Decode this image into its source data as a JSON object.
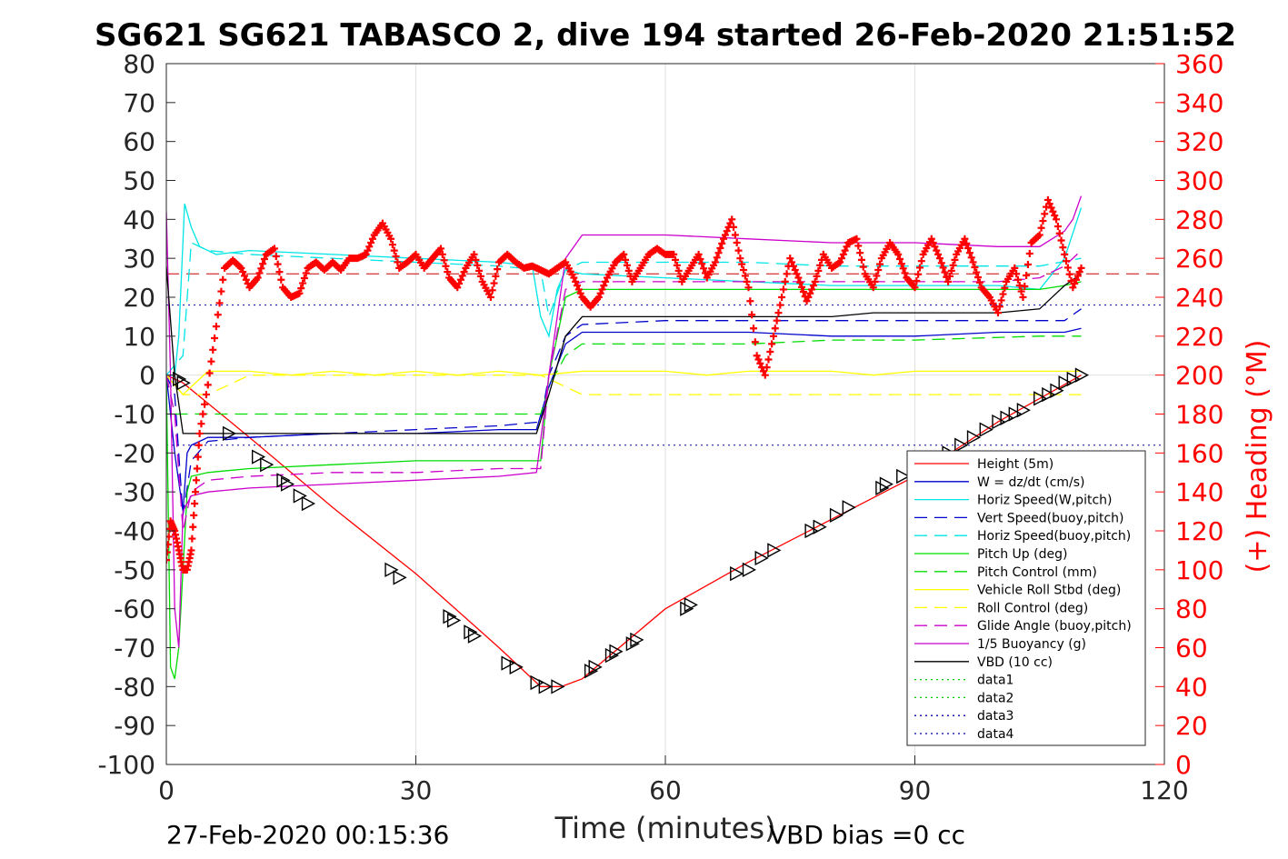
{
  "chart_data": {
    "type": "line",
    "title": "SG621 SG621 TABASCO 2, dive 194 started 26-Feb-2020 21:51:52",
    "xlabel": "Time (minutes)",
    "ylabel_right": "(+) Heading (°M)",
    "footer_left": "27-Feb-2020 00:15:36",
    "footer_right": "VBD bias =0 cc",
    "xlim": [
      0,
      120
    ],
    "ylim": [
      -100,
      80
    ],
    "ylim_right": [
      0,
      360
    ],
    "xticks": [
      "0",
      "30",
      "60",
      "90",
      "120"
    ],
    "yticks": [
      "80",
      "70",
      "60",
      "50",
      "40",
      "30",
      "20",
      "10",
      "0",
      "-10",
      "-20",
      "-30",
      "-40",
      "-50",
      "-60",
      "-70",
      "-80",
      "-90",
      "-100"
    ],
    "yticks_right": [
      "360",
      "340",
      "320",
      "300",
      "280",
      "260",
      "240",
      "220",
      "200",
      "180",
      "160",
      "140",
      "120",
      "100",
      "80",
      "60",
      "40",
      "20",
      "0"
    ],
    "grid": true,
    "legend_position": "lower-right",
    "series": [
      {
        "name": "Height (5m)",
        "color": "#ff0000",
        "style": "solid",
        "x": [
          0,
          2,
          10,
          20,
          30,
          40,
          45,
          47.5,
          50,
          60,
          70,
          80,
          90,
          100,
          110
        ],
        "y": [
          0,
          -2,
          -16,
          -34,
          -51,
          -70,
          -80,
          -80,
          -78,
          -60,
          -48,
          -37,
          -26,
          -12,
          0
        ]
      },
      {
        "name": "W = dz/dt (cm/s)",
        "color": "#0000cc",
        "style": "solid",
        "x": [
          0,
          1,
          2,
          2.5,
          3,
          5,
          10,
          20,
          30,
          40,
          44.5,
          46,
          48,
          50,
          60,
          70,
          80,
          90,
          100,
          105,
          108,
          110
        ],
        "y": [
          0,
          -20,
          -35,
          -20,
          -18,
          -16,
          -16,
          -15,
          -15,
          -14,
          -14,
          -3,
          8,
          11,
          11,
          11,
          10,
          10,
          11,
          11,
          11,
          12
        ]
      },
      {
        "name": "Horiz Speed(W,pitch)",
        "color": "#00e5e5",
        "style": "solid",
        "x": [
          0,
          1,
          1.5,
          2.2,
          3,
          4,
          6,
          10,
          20,
          30,
          40,
          44,
          45,
          46,
          47,
          48,
          50,
          60,
          70,
          80,
          90,
          100,
          105,
          108,
          110
        ],
        "y": [
          0,
          0,
          10,
          44,
          38,
          33,
          31,
          32,
          31,
          30,
          29,
          28,
          15,
          10,
          22,
          27,
          26,
          25,
          24,
          23,
          23,
          23,
          22,
          30,
          43
        ]
      },
      {
        "name": "Vert Speed(buoy,pitch)",
        "color": "#0000cc",
        "style": "dashed",
        "x": [
          0,
          1,
          2,
          3,
          5,
          10,
          20,
          30,
          40,
          45,
          46,
          48,
          50,
          60,
          70,
          80,
          90,
          100,
          105,
          108,
          110
        ],
        "y": [
          0,
          -5,
          -36,
          -22,
          -17,
          -16,
          -15,
          -14,
          -13,
          -12,
          0,
          10,
          13,
          14,
          14,
          14,
          14,
          14,
          14,
          14,
          17
        ]
      },
      {
        "name": "Horiz Speed(buoy,pitch)",
        "color": "#00e5e5",
        "style": "dashed",
        "x": [
          0,
          2,
          3,
          5,
          10,
          20,
          30,
          40,
          45,
          46,
          48,
          50,
          60,
          70,
          80,
          90,
          100,
          105,
          110
        ],
        "y": [
          0,
          5,
          34,
          32,
          31,
          30,
          29,
          28,
          27,
          15,
          27,
          29,
          29,
          29,
          28,
          28,
          28,
          28,
          30
        ]
      },
      {
        "name": "Pitch Up (deg)",
        "color": "#00dd00",
        "style": "solid",
        "x": [
          0,
          0.5,
          1,
          1.5,
          2,
          2.5,
          3,
          5,
          10,
          20,
          30,
          40,
          45,
          46,
          48,
          50,
          60,
          70,
          80,
          90,
          100,
          105,
          108,
          110
        ],
        "y": [
          0,
          -75,
          -78,
          -70,
          -50,
          -30,
          -26,
          -25,
          -24,
          -23,
          -22,
          -22,
          -22,
          0,
          20,
          22,
          22,
          22,
          22,
          22,
          22,
          22,
          23,
          24
        ]
      },
      {
        "name": "Pitch Control (mm)",
        "color": "#00dd00",
        "style": "dashed",
        "x": [
          0,
          1,
          2,
          45,
          46,
          48,
          50,
          70,
          80,
          90,
          105,
          110
        ],
        "y": [
          0,
          -10,
          -10,
          -10,
          -3,
          5,
          8,
          8,
          9,
          9,
          10,
          10
        ]
      },
      {
        "name": "Vehicle Roll Stbd (deg)",
        "color": "#ffff00",
        "style": "solid",
        "x": [
          0,
          2,
          5,
          10,
          15,
          20,
          25,
          30,
          35,
          40,
          45,
          50,
          55,
          60,
          65,
          70,
          75,
          80,
          85,
          90,
          95,
          100,
          105,
          110
        ],
        "y": [
          0,
          -5,
          1,
          1,
          0,
          1,
          0,
          1,
          0,
          1,
          0,
          1,
          1,
          1,
          0,
          1,
          1,
          1,
          0,
          1,
          1,
          1,
          1,
          1
        ]
      },
      {
        "name": "Roll Control (deg)",
        "color": "#ffff00",
        "style": "dashed",
        "x": [
          0,
          2,
          5,
          10,
          20,
          30,
          40,
          45,
          50,
          60,
          70,
          80,
          90,
          100,
          110
        ],
        "y": [
          0,
          -5,
          -5,
          0,
          0,
          0,
          0,
          0,
          -5,
          -5,
          -5,
          -5,
          -5,
          -5,
          -5
        ]
      },
      {
        "name": "Glide Angle (buoy,pitch)",
        "color": "#cc00cc",
        "style": "dashed",
        "x": [
          0,
          1,
          2,
          3,
          5,
          10,
          20,
          30,
          40,
          45,
          46,
          48,
          50,
          60,
          70,
          80,
          90,
          100,
          105,
          108,
          110
        ],
        "y": [
          0,
          -10,
          -40,
          -30,
          -27,
          -26,
          -25,
          -25,
          -24,
          -24,
          0,
          22,
          24,
          24,
          24,
          24,
          24,
          24,
          25,
          28,
          32
        ]
      },
      {
        "name": "1/5 Buoyancy (g)",
        "color": "#cc00cc",
        "style": "solid",
        "x": [
          0,
          0.5,
          1,
          1.5,
          2,
          3,
          5,
          10,
          20,
          30,
          40,
          44.5,
          46,
          48,
          50,
          60,
          70,
          80,
          90,
          100,
          105,
          108,
          109,
          110
        ],
        "y": [
          42,
          0,
          -60,
          -70,
          -35,
          -31,
          -30,
          -29,
          -28,
          -27,
          -26,
          -25,
          0,
          30,
          36,
          36,
          35,
          34,
          34,
          33,
          33,
          37,
          40,
          46
        ]
      },
      {
        "name": "VBD (10 cc)",
        "color": "#000000",
        "style": "solid",
        "x": [
          0,
          1,
          2,
          44.5,
          46,
          48,
          50,
          60,
          70,
          80,
          85,
          90,
          100,
          105,
          108,
          110
        ],
        "y": [
          28,
          0,
          -15,
          -15,
          -5,
          10,
          15,
          15,
          15,
          15,
          16,
          16,
          16,
          17,
          23,
          26
        ]
      },
      {
        "name": "data1",
        "color": "#00cc00",
        "style": "dotted",
        "x": [],
        "y": []
      },
      {
        "name": "data2",
        "color": "#00cc00",
        "style": "dotted",
        "x": [],
        "y": []
      },
      {
        "name": "data3",
        "color": "#0000aa",
        "style": "dotted",
        "x": [],
        "y": []
      },
      {
        "name": "data4",
        "color": "#0000aa",
        "style": "dotted",
        "x": [],
        "y": []
      }
    ],
    "reference_lines": [
      {
        "y": 26,
        "color": "#cc0000",
        "style": "dashed"
      },
      {
        "y": 18,
        "color": "#0000aa",
        "style": "dotted"
      },
      {
        "y": -18,
        "color": "#0000aa",
        "style": "dotted"
      }
    ],
    "heading_series": {
      "color": "#ff0000",
      "marker": "+",
      "axis": "right",
      "x": [
        0,
        0.5,
        1,
        1.5,
        2,
        2.5,
        3,
        3.5,
        4,
        5,
        6,
        7,
        8,
        9,
        10,
        11,
        12,
        13,
        14,
        15,
        16,
        17,
        18,
        19,
        20,
        21,
        22,
        23,
        24,
        25,
        26,
        27,
        28,
        29,
        30,
        31,
        32,
        33,
        34,
        35,
        36,
        37,
        38,
        39,
        40,
        41,
        42,
        43,
        44,
        45,
        46,
        47,
        48,
        49,
        50,
        51,
        52,
        53,
        54,
        55,
        56,
        57,
        58,
        59,
        60,
        61,
        62,
        63,
        64,
        65,
        66,
        67,
        68,
        69,
        70,
        71,
        72,
        73,
        74,
        75,
        76,
        77,
        78,
        79,
        80,
        81,
        82,
        83,
        84,
        85,
        86,
        87,
        88,
        89,
        90,
        91,
        92,
        93,
        94,
        95,
        96,
        97,
        98,
        99,
        100,
        101,
        102,
        103,
        104,
        105,
        106,
        107,
        108,
        109,
        110
      ],
      "y": [
        105,
        125,
        120,
        110,
        100,
        100,
        110,
        140,
        170,
        195,
        225,
        255,
        259,
        255,
        245,
        250,
        262,
        265,
        245,
        240,
        242,
        255,
        258,
        254,
        258,
        254,
        260,
        260,
        262,
        272,
        278,
        270,
        255,
        258,
        262,
        255,
        260,
        265,
        250,
        245,
        255,
        262,
        248,
        240,
        258,
        262,
        258,
        255,
        256,
        254,
        252,
        255,
        258,
        250,
        240,
        235,
        240,
        250,
        258,
        262,
        248,
        255,
        262,
        265,
        262,
        262,
        248,
        255,
        262,
        250,
        258,
        270,
        280,
        260,
        245,
        210,
        200,
        220,
        240,
        260,
        250,
        238,
        248,
        262,
        255,
        258,
        268,
        270,
        252,
        245,
        260,
        268,
        262,
        250,
        245,
        262,
        270,
        260,
        248,
        262,
        270,
        258,
        245,
        240,
        232,
        248,
        255,
        240,
        268,
        272,
        290,
        280,
        262,
        245,
        255
      ]
    },
    "depth_markers": {
      "marker": "triangle",
      "x": [
        1.5,
        2,
        7.5,
        11,
        12,
        14,
        14.5,
        16,
        17,
        27,
        28,
        34,
        34.5,
        36.5,
        37,
        41,
        42,
        44.5,
        45.5,
        47,
        51,
        51.5,
        53.5,
        54,
        56,
        56.5,
        62.5,
        63,
        68.5,
        70,
        71.5,
        73,
        77.5,
        78.5,
        80.5,
        82,
        86,
        86.5,
        88.5,
        94,
        95.5,
        97,
        98.5,
        100,
        101,
        102,
        103,
        105,
        106,
        107,
        108,
        109,
        110
      ],
      "y": [
        -1,
        -2,
        -15,
        -21,
        -23,
        -27,
        -28,
        -31,
        -33,
        -50,
        -52,
        -62,
        -63,
        -66,
        -67,
        -74,
        -75,
        -79,
        -80,
        -80,
        -76,
        -75,
        -72,
        -71,
        -69,
        -68,
        -60,
        -59,
        -51,
        -50,
        -47,
        -45,
        -40,
        -39,
        -36,
        -34,
        -29,
        -28,
        -26,
        -20,
        -18,
        -16,
        -14,
        -12,
        -11,
        -10,
        -9,
        -6,
        -5,
        -4,
        -2,
        -1,
        0
      ]
    }
  }
}
